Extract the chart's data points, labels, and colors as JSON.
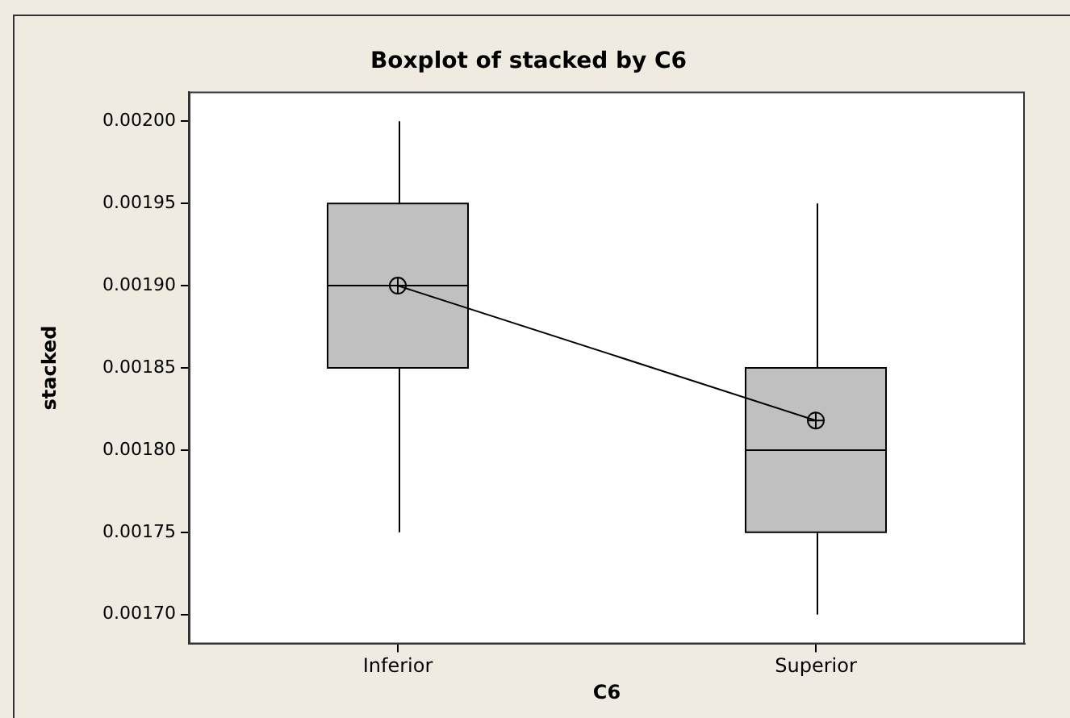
{
  "chart_data": {
    "type": "box",
    "title": "Boxplot of stacked by C6",
    "xlabel": "C6",
    "ylabel": "stacked",
    "categories": [
      "Inferior",
      "Superior"
    ],
    "series": [
      {
        "color": "#c0c0c0",
        "boxes": [
          {
            "low": 0.00175,
            "q1": 0.00185,
            "median": 0.0019,
            "q3": 0.00195,
            "high": 0.002
          },
          {
            "low": 0.0017,
            "q1": 0.00175,
            "median": 0.0018,
            "q3": 0.00185,
            "high": 0.00195
          }
        ]
      },
      {
        "type": "line",
        "color": "#000000",
        "marker": "circle",
        "values": [
          0.0019,
          0.001818
        ]
      }
    ],
    "ylim": [
      0.001682,
      0.002018
    ],
    "yticks": [
      {
        "value": 0.0017,
        "label": "0.00170"
      },
      {
        "value": 0.00175,
        "label": "0.00175"
      },
      {
        "value": 0.0018,
        "label": "0.00180"
      },
      {
        "value": 0.00185,
        "label": "0.00185"
      },
      {
        "value": 0.0019,
        "label": "0.00190"
      },
      {
        "value": 0.00195,
        "label": "0.00195"
      },
      {
        "value": 0.002,
        "label": "0.00200"
      }
    ],
    "grid": false,
    "legend": false
  }
}
